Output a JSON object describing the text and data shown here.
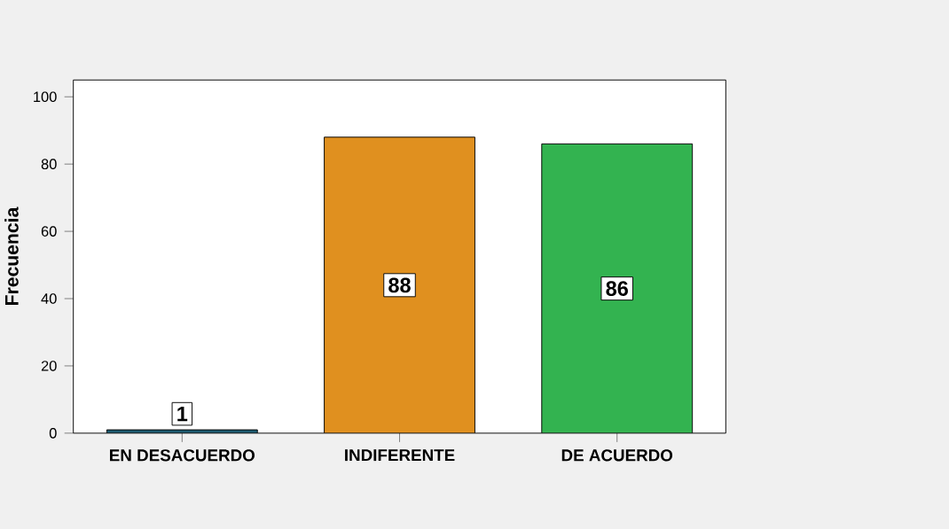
{
  "chart_data": {
    "type": "bar",
    "ylabel": "Frecuencia",
    "categories": [
      "EN DESACUERDO",
      "INDIFERENTE",
      "DE ACUERDO"
    ],
    "values": [
      1,
      88,
      86
    ],
    "colors": [
      "#1d5b70",
      "#e0901f",
      "#33b350"
    ],
    "ylim": [
      0,
      105
    ],
    "yticks": [
      0,
      20,
      40,
      60,
      80,
      100
    ],
    "data_labels": true,
    "grid": false
  }
}
